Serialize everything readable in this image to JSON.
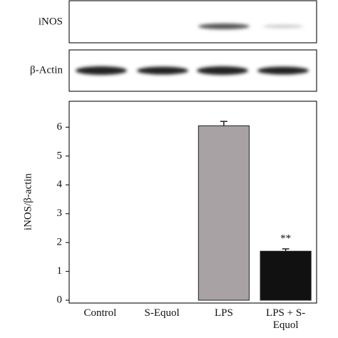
{
  "chart_data": {
    "type": "bar",
    "blot_labels": [
      "iNOS",
      "β-Actin"
    ],
    "ylabel": "iNOS/β-actin",
    "categories": [
      "Control",
      "S-Equol",
      "LPS",
      "LPS + S-Equol"
    ],
    "values": [
      0,
      0,
      6.05,
      1.7
    ],
    "errors": [
      0,
      0,
      0.15,
      0.08
    ],
    "colors": [
      "#a8a2a4",
      "#a8a2a4",
      "#a8a2a4",
      "#111111"
    ],
    "annotations": [
      "**"
    ],
    "ylim": [
      0,
      6.9
    ],
    "yticks": [
      0,
      1,
      2,
      3,
      4,
      5,
      6
    ]
  }
}
